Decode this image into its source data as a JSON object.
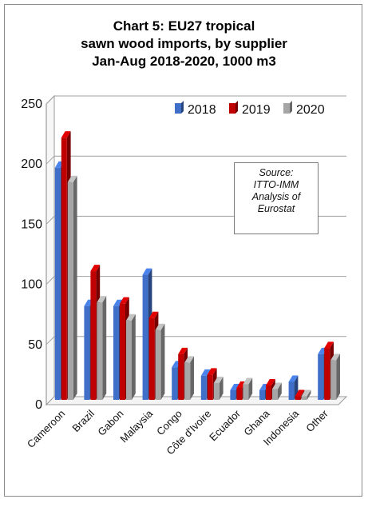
{
  "title_lines": [
    "Chart 5: EU27 tropical",
    "sawn wood imports, by supplier",
    "Jan-Aug 2018-2020, 1000 m3"
  ],
  "note_lines": [
    "Source:",
    "ITTO-IMM",
    "Analysis of",
    "Eurostat"
  ],
  "colors": {
    "2018": "#3f6fc8",
    "2019": "#c00000",
    "2020": "#a6a6a6"
  },
  "chart_data": {
    "type": "bar",
    "title": "Chart 5: EU27 tropical sawn wood imports, by supplier Jan-Aug 2018-2020, 1000 m3",
    "xlabel": "",
    "ylabel": "",
    "ylim": [
      0,
      250
    ],
    "yticks": [
      0,
      50,
      100,
      150,
      200,
      250
    ],
    "grid": true,
    "legend_position": "top-right",
    "categories": [
      "Cameroon",
      "Brazil",
      "Gabon",
      "Malaysia",
      "Congo",
      "Côte d'Ivoire",
      "Ecuador",
      "Ghana",
      "Indonesia",
      "Other"
    ],
    "series": [
      {
        "name": "2018",
        "values": [
          193,
          78,
          78,
          104,
          27,
          20,
          8,
          8,
          15,
          38
        ]
      },
      {
        "name": "2019",
        "values": [
          218,
          107,
          80,
          68,
          38,
          21,
          10,
          12,
          3,
          43
        ]
      },
      {
        "name": "2020",
        "values": [
          181,
          81,
          66,
          58,
          31,
          14,
          13,
          9,
          3,
          33
        ]
      }
    ]
  }
}
